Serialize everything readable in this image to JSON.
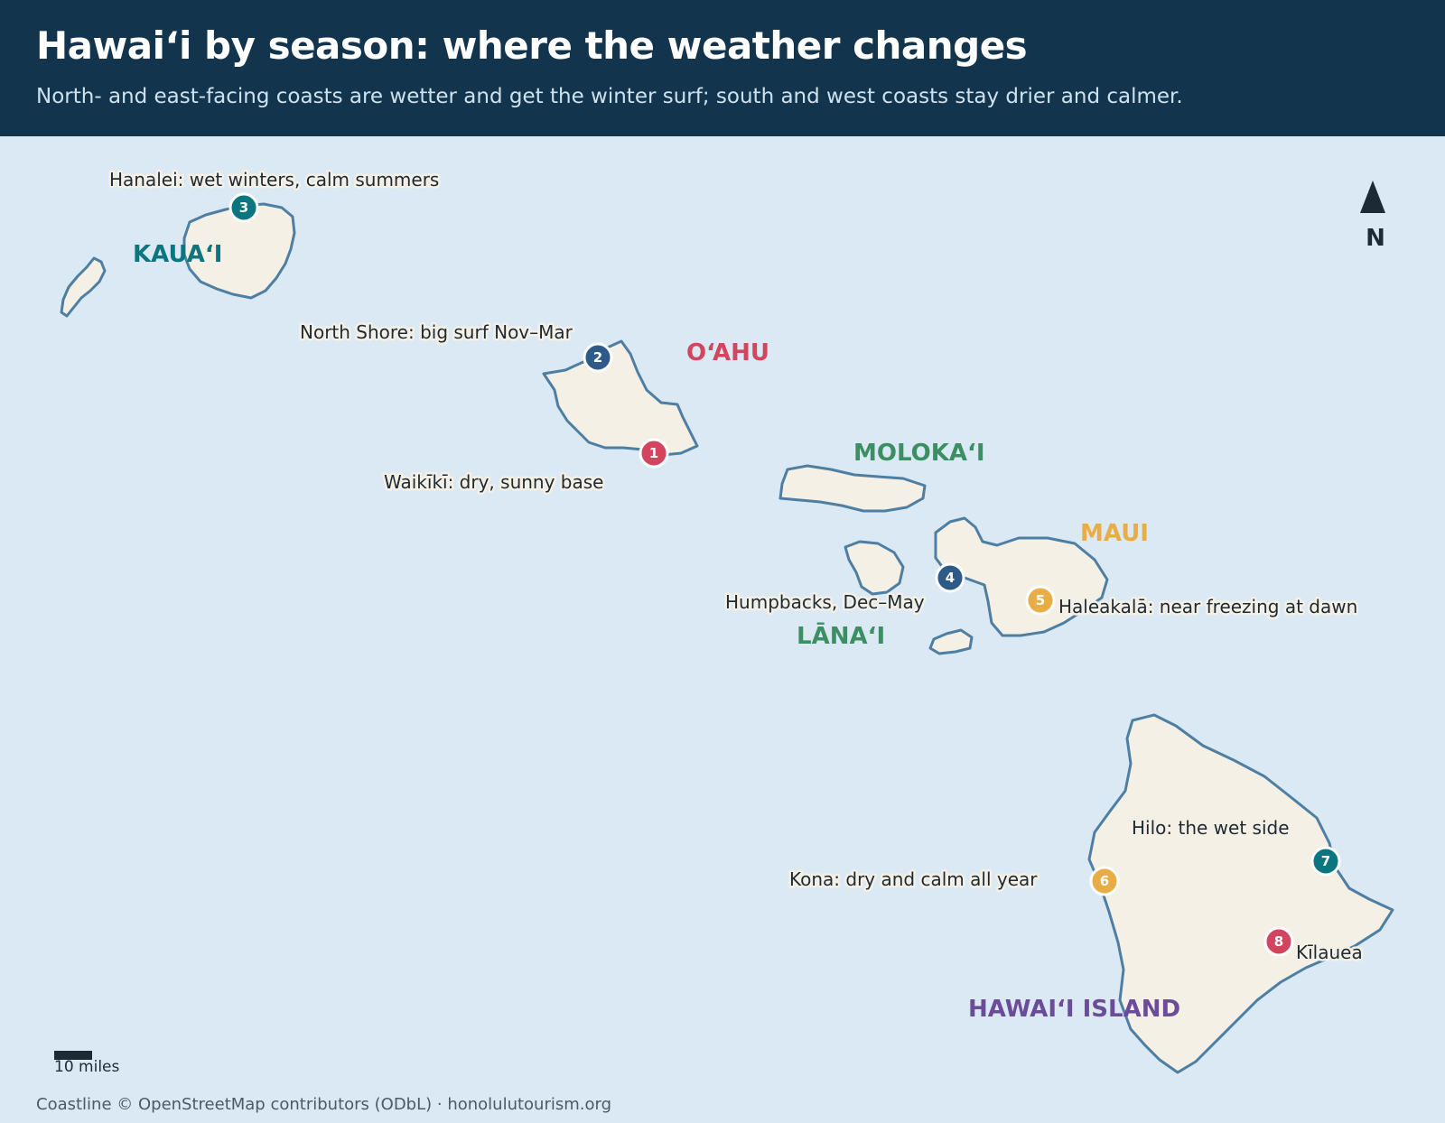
{
  "header": {
    "title": "Hawaiʻi by season: where the weather changes",
    "subtitle": "North- and east-facing coasts are wetter and get the winter surf; south and west coasts stay drier and calmer."
  },
  "colors": {
    "ocean": "#dbe9f4",
    "land": "#f5f0e6",
    "coast": "#4e7fa3",
    "header_bg": "#12344c",
    "teal": "#0b7580",
    "navy": "#2e5a8a",
    "red": "#d2455f",
    "green": "#3b8f63",
    "gold": "#e9ad45",
    "purple": "#6b4c98"
  },
  "islands": [
    {
      "id": "kauai",
      "label": "KAUAʻI",
      "color": "#0b7580"
    },
    {
      "id": "oahu",
      "label": "OʻAHU",
      "color": "#d2455f"
    },
    {
      "id": "molokai",
      "label": "MOLOKAʻI",
      "color": "#3b8f63"
    },
    {
      "id": "maui",
      "label": "MAUI",
      "color": "#e9ad45"
    },
    {
      "id": "lanai",
      "label": "LĀNAʻI",
      "color": "#3b8f63"
    },
    {
      "id": "hawaii",
      "label": "HAWAIʻI ISLAND",
      "color": "#6b4c98"
    }
  ],
  "markers": [
    {
      "num": "1",
      "text": "Waikīkī: dry, sunny base",
      "color": "#d2455f"
    },
    {
      "num": "2",
      "text": "North Shore: big surf Nov–Mar",
      "color": "#2e5a8a"
    },
    {
      "num": "3",
      "text": "Hanalei: wet winters, calm summers",
      "color": "#0b7580"
    },
    {
      "num": "4",
      "text": "Humpbacks, Dec–May",
      "color": "#2e5a8a"
    },
    {
      "num": "5",
      "text": "Haleakalā: near freezing at dawn",
      "color": "#e9ad45"
    },
    {
      "num": "6",
      "text": "Kona: dry and calm all year",
      "color": "#e9ad45"
    },
    {
      "num": "7",
      "text": "Hilo: the wet side",
      "color": "#0b7580"
    },
    {
      "num": "8",
      "text": "Kīlauea",
      "color": "#d2455f"
    }
  ],
  "north_arrow": {
    "label": "N",
    "icon": "north-arrow-icon"
  },
  "scale": {
    "label": "10 miles"
  },
  "credit": "Coastline © OpenStreetMap contributors (ODbL) · honolulutourism.org"
}
